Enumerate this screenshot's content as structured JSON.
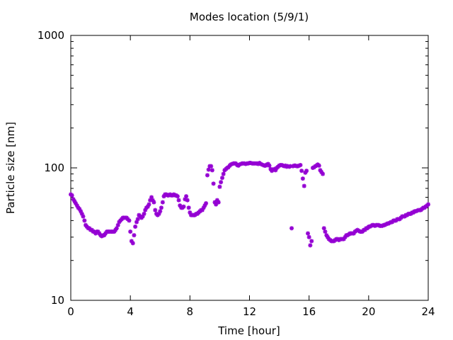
{
  "chart_data": {
    "type": "scatter",
    "title": "Modes location (5/9/1)",
    "xlabel": "Time [hour]",
    "ylabel": "Particle size [nm]",
    "xlim": [
      0,
      24
    ],
    "ylim": [
      10,
      1000
    ],
    "yscale": "log",
    "x_ticks": [
      0,
      4,
      8,
      12,
      16,
      20,
      24
    ],
    "x_tick_labels": [
      "0",
      "4",
      "8",
      "12",
      "16",
      "20",
      "24"
    ],
    "y_ticks": [
      10,
      100,
      1000
    ],
    "y_tick_labels": [
      "10",
      "100",
      "1000"
    ],
    "grid": false,
    "legend": "none",
    "marker_color": "#9400D3",
    "series": [
      {
        "points": [
          [
            0.0,
            63
          ],
          [
            0.08,
            62
          ],
          [
            0.17,
            58
          ],
          [
            0.25,
            56
          ],
          [
            0.33,
            54
          ],
          [
            0.42,
            52
          ],
          [
            0.5,
            50
          ],
          [
            0.58,
            49
          ],
          [
            0.67,
            47
          ],
          [
            0.75,
            45
          ],
          [
            0.83,
            43
          ],
          [
            0.92,
            40
          ],
          [
            1.0,
            37
          ],
          [
            1.08,
            36
          ],
          [
            1.17,
            35
          ],
          [
            1.25,
            35
          ],
          [
            1.33,
            34
          ],
          [
            1.42,
            34
          ],
          [
            1.5,
            33
          ],
          [
            1.58,
            33
          ],
          [
            1.67,
            32
          ],
          [
            1.75,
            33
          ],
          [
            1.83,
            33
          ],
          [
            1.92,
            32
          ],
          [
            2.0,
            31
          ],
          [
            2.08,
            30.5
          ],
          [
            2.17,
            31
          ],
          [
            2.25,
            31
          ],
          [
            2.33,
            32
          ],
          [
            2.42,
            33
          ],
          [
            2.5,
            33
          ],
          [
            2.58,
            33
          ],
          [
            2.67,
            33
          ],
          [
            2.75,
            33
          ],
          [
            2.83,
            33
          ],
          [
            2.92,
            33
          ],
          [
            3.0,
            34
          ],
          [
            3.08,
            35
          ],
          [
            3.17,
            37
          ],
          [
            3.25,
            39
          ],
          [
            3.33,
            40
          ],
          [
            3.42,
            41
          ],
          [
            3.5,
            42
          ],
          [
            3.58,
            42
          ],
          [
            3.67,
            42
          ],
          [
            3.75,
            42
          ],
          [
            3.83,
            41
          ],
          [
            3.92,
            40
          ],
          [
            4.0,
            33
          ],
          [
            4.08,
            28
          ],
          [
            4.17,
            27
          ],
          [
            4.25,
            31
          ],
          [
            4.33,
            36
          ],
          [
            4.42,
            39
          ],
          [
            4.5,
            41
          ],
          [
            4.58,
            44
          ],
          [
            4.67,
            43
          ],
          [
            4.75,
            42
          ],
          [
            4.83,
            43
          ],
          [
            4.92,
            45
          ],
          [
            5.0,
            48
          ],
          [
            5.08,
            50
          ],
          [
            5.17,
            51
          ],
          [
            5.25,
            53
          ],
          [
            5.33,
            57
          ],
          [
            5.42,
            60
          ],
          [
            5.5,
            57
          ],
          [
            5.58,
            55
          ],
          [
            5.67,
            48
          ],
          [
            5.75,
            45
          ],
          [
            5.83,
            44
          ],
          [
            5.92,
            45
          ],
          [
            6.0,
            47
          ],
          [
            6.08,
            50
          ],
          [
            6.17,
            55
          ],
          [
            6.25,
            61
          ],
          [
            6.33,
            63
          ],
          [
            6.42,
            63
          ],
          [
            6.5,
            62
          ],
          [
            6.58,
            62
          ],
          [
            6.67,
            63
          ],
          [
            6.75,
            62
          ],
          [
            6.83,
            62
          ],
          [
            6.92,
            63
          ],
          [
            7.0,
            62
          ],
          [
            7.08,
            62
          ],
          [
            7.17,
            61
          ],
          [
            7.25,
            57
          ],
          [
            7.33,
            52
          ],
          [
            7.42,
            50
          ],
          [
            7.5,
            50
          ],
          [
            7.58,
            51
          ],
          [
            7.67,
            58
          ],
          [
            7.75,
            61
          ],
          [
            7.83,
            57
          ],
          [
            7.92,
            50
          ],
          [
            8.0,
            46
          ],
          [
            8.08,
            44
          ],
          [
            8.17,
            44
          ],
          [
            8.25,
            44
          ],
          [
            8.33,
            44
          ],
          [
            8.42,
            45
          ],
          [
            8.5,
            45
          ],
          [
            8.58,
            46
          ],
          [
            8.67,
            47
          ],
          [
            8.75,
            48
          ],
          [
            8.83,
            48
          ],
          [
            8.92,
            50
          ],
          [
            9.0,
            52
          ],
          [
            9.08,
            54
          ],
          [
            9.17,
            88
          ],
          [
            9.25,
            97
          ],
          [
            9.33,
            103
          ],
          [
            9.42,
            103
          ],
          [
            9.5,
            96
          ],
          [
            9.58,
            76
          ],
          [
            9.67,
            55
          ],
          [
            9.75,
            53
          ],
          [
            9.83,
            57
          ],
          [
            9.92,
            55
          ],
          [
            10.0,
            72
          ],
          [
            10.08,
            78
          ],
          [
            10.17,
            84
          ],
          [
            10.25,
            90
          ],
          [
            10.33,
            96
          ],
          [
            10.42,
            98
          ],
          [
            10.5,
            100
          ],
          [
            10.58,
            101
          ],
          [
            10.67,
            104
          ],
          [
            10.75,
            106
          ],
          [
            10.83,
            107
          ],
          [
            10.92,
            108
          ],
          [
            11.0,
            108
          ],
          [
            11.08,
            108
          ],
          [
            11.17,
            105
          ],
          [
            11.25,
            104
          ],
          [
            11.33,
            106
          ],
          [
            11.42,
            107
          ],
          [
            11.5,
            108
          ],
          [
            11.58,
            108
          ],
          [
            11.67,
            108
          ],
          [
            11.75,
            107
          ],
          [
            11.83,
            108
          ],
          [
            11.92,
            108
          ],
          [
            12.0,
            109
          ],
          [
            12.08,
            109
          ],
          [
            12.17,
            108
          ],
          [
            12.25,
            108
          ],
          [
            12.33,
            108
          ],
          [
            12.42,
            108
          ],
          [
            12.5,
            108
          ],
          [
            12.58,
            107
          ],
          [
            12.67,
            109
          ],
          [
            12.75,
            107
          ],
          [
            12.83,
            106
          ],
          [
            12.92,
            105
          ],
          [
            13.0,
            104
          ],
          [
            13.08,
            104
          ],
          [
            13.17,
            106
          ],
          [
            13.25,
            107
          ],
          [
            13.33,
            104
          ],
          [
            13.42,
            98
          ],
          [
            13.5,
            95
          ],
          [
            13.58,
            97
          ],
          [
            13.67,
            98
          ],
          [
            13.75,
            96
          ],
          [
            13.83,
            100
          ],
          [
            13.92,
            102
          ],
          [
            14.0,
            104
          ],
          [
            14.08,
            105
          ],
          [
            14.17,
            105
          ],
          [
            14.25,
            104
          ],
          [
            14.33,
            103
          ],
          [
            14.42,
            104
          ],
          [
            14.5,
            102
          ],
          [
            14.58,
            103
          ],
          [
            14.67,
            102
          ],
          [
            14.75,
            103
          ],
          [
            14.83,
            35
          ],
          [
            14.92,
            103
          ],
          [
            15.0,
            104
          ],
          [
            15.08,
            104
          ],
          [
            15.17,
            103
          ],
          [
            15.25,
            103
          ],
          [
            15.33,
            104
          ],
          [
            15.42,
            105
          ],
          [
            15.5,
            95
          ],
          [
            15.58,
            83
          ],
          [
            15.67,
            73
          ],
          [
            15.75,
            92
          ],
          [
            15.83,
            95
          ],
          [
            15.92,
            32
          ],
          [
            16.0,
            30
          ],
          [
            16.08,
            26
          ],
          [
            16.17,
            28
          ],
          [
            16.25,
            100
          ],
          [
            16.33,
            101
          ],
          [
            16.42,
            103
          ],
          [
            16.5,
            104
          ],
          [
            16.58,
            106
          ],
          [
            16.67,
            104
          ],
          [
            16.75,
            96
          ],
          [
            16.83,
            93
          ],
          [
            16.92,
            90
          ],
          [
            17.0,
            35
          ],
          [
            17.08,
            33
          ],
          [
            17.17,
            31
          ],
          [
            17.25,
            30
          ],
          [
            17.33,
            29
          ],
          [
            17.42,
            28.5
          ],
          [
            17.5,
            28
          ],
          [
            17.58,
            28
          ],
          [
            17.67,
            28
          ],
          [
            17.75,
            28.5
          ],
          [
            17.83,
            29
          ],
          [
            17.92,
            29
          ],
          [
            18.0,
            28.5
          ],
          [
            18.08,
            29
          ],
          [
            18.17,
            29
          ],
          [
            18.25,
            29
          ],
          [
            18.33,
            29
          ],
          [
            18.42,
            30
          ],
          [
            18.5,
            31
          ],
          [
            18.58,
            31
          ],
          [
            18.67,
            31.5
          ],
          [
            18.75,
            32
          ],
          [
            18.83,
            32
          ],
          [
            18.92,
            32
          ],
          [
            19.0,
            32
          ],
          [
            19.08,
            33
          ],
          [
            19.17,
            33.5
          ],
          [
            19.25,
            34
          ],
          [
            19.33,
            33.5
          ],
          [
            19.42,
            33
          ],
          [
            19.5,
            33
          ],
          [
            19.58,
            33
          ],
          [
            19.67,
            34
          ],
          [
            19.75,
            34
          ],
          [
            19.83,
            35
          ],
          [
            19.92,
            35
          ],
          [
            20.0,
            36
          ],
          [
            20.08,
            36
          ],
          [
            20.17,
            36.5
          ],
          [
            20.25,
            37
          ],
          [
            20.33,
            37
          ],
          [
            20.42,
            36.5
          ],
          [
            20.5,
            37
          ],
          [
            20.58,
            37
          ],
          [
            20.67,
            37
          ],
          [
            20.75,
            36.5
          ],
          [
            20.83,
            36.5
          ],
          [
            20.92,
            36.5
          ],
          [
            21.0,
            37
          ],
          [
            21.08,
            37
          ],
          [
            21.17,
            37.5
          ],
          [
            21.25,
            38
          ],
          [
            21.33,
            38
          ],
          [
            21.42,
            38.5
          ],
          [
            21.5,
            39
          ],
          [
            21.58,
            39
          ],
          [
            21.67,
            40
          ],
          [
            21.75,
            40
          ],
          [
            21.83,
            40
          ],
          [
            21.92,
            41
          ],
          [
            22.0,
            41
          ],
          [
            22.08,
            41
          ],
          [
            22.17,
            42
          ],
          [
            22.25,
            43
          ],
          [
            22.33,
            43
          ],
          [
            22.42,
            43
          ],
          [
            22.5,
            44
          ],
          [
            22.58,
            44
          ],
          [
            22.67,
            45
          ],
          [
            22.75,
            45
          ],
          [
            22.83,
            45
          ],
          [
            22.92,
            46
          ],
          [
            23.0,
            46
          ],
          [
            23.08,
            47
          ],
          [
            23.17,
            47
          ],
          [
            23.25,
            47.5
          ],
          [
            23.33,
            48
          ],
          [
            23.42,
            48
          ],
          [
            23.5,
            48
          ],
          [
            23.58,
            49
          ],
          [
            23.67,
            50
          ],
          [
            23.75,
            50
          ],
          [
            23.83,
            51
          ],
          [
            23.92,
            52
          ],
          [
            24.0,
            53
          ]
        ]
      }
    ]
  }
}
